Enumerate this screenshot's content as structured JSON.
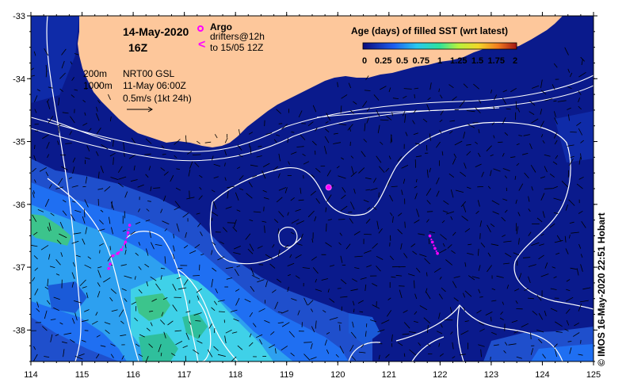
{
  "header": {
    "date": "14-May-2020",
    "hour": "16Z",
    "argo_label": "Argo",
    "drifters_label": "drifters@12h",
    "drifters_to": "to 15/05 12Z",
    "drifter_glyph": "<"
  },
  "legend": {
    "title": "Age (days) of filled SST (wrt latest)",
    "ticks": [
      "0",
      "0.25",
      "0.5",
      "0.75",
      "1",
      "1.25",
      "1.5",
      "1.75",
      "2"
    ]
  },
  "contour_key": {
    "c200": "200m",
    "c1000": "1000m",
    "product": "NRT00 GSL",
    "date": "11-May 06:00Z",
    "arrow_scale": "0.5m/s (1kt 24h)"
  },
  "credit": "© IMOS 16-May-2020 22:51 Hobart",
  "axes": {
    "lon_labels": [
      "114",
      "115",
      "116",
      "117",
      "118",
      "119",
      "120",
      "121",
      "122",
      "123",
      "124",
      "125"
    ],
    "lat_labels": [
      "-33",
      "-34",
      "-35",
      "-36",
      "-37",
      "-38"
    ],
    "lon_range": [
      114,
      125
    ],
    "lat_range": [
      -38.5,
      -33
    ]
  },
  "colors": {
    "ocean": "#0a1a8c",
    "land": "#fdc79b",
    "contour": "#ffffff",
    "argo": "#ff00ff",
    "age_low": "#0a1a8c",
    "age_mid": "#1f6ff2",
    "age_high": "#3fd1e8",
    "age_green": "#3cc48c"
  },
  "argo_float": {
    "lon": 119.82,
    "lat": -35.73
  },
  "drifters": [
    {
      "track": [
        [
          115.93,
          -36.33
        ],
        [
          115.9,
          -36.45
        ],
        [
          115.85,
          -36.6
        ],
        [
          115.77,
          -36.72
        ],
        [
          115.7,
          -36.78
        ],
        [
          115.6,
          -36.82
        ]
      ]
    },
    {
      "track": [
        [
          115.55,
          -36.95
        ],
        [
          115.52,
          -37.02
        ]
      ]
    },
    {
      "track": [
        [
          121.8,
          -36.5
        ],
        [
          121.85,
          -36.6
        ],
        [
          121.9,
          -36.7
        ],
        [
          121.95,
          -36.78
        ]
      ]
    }
  ]
}
